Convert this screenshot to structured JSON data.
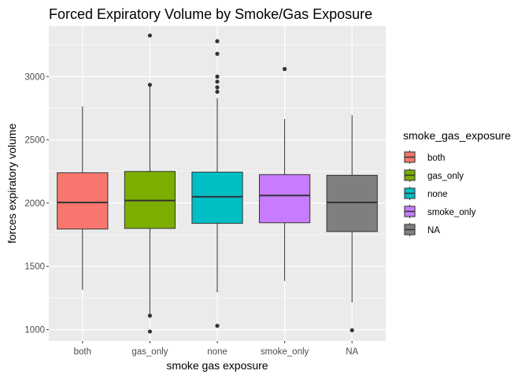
{
  "chart_data": {
    "type": "boxplot",
    "title": "Forced Expiratory Volume by Smoke/Gas Exposure",
    "xlabel": "smoke gas exposure",
    "ylabel": "forces expiratory volume",
    "categories": [
      "both",
      "gas_only",
      "none",
      "smoke_only",
      "NA"
    ],
    "ylim": [
      910,
      3400
    ],
    "yticks": [
      1000,
      1500,
      2000,
      2500,
      3000
    ],
    "grid": true,
    "legend": {
      "title": "smoke_gas_exposure",
      "position": "right"
    },
    "boxes": [
      {
        "category": "both",
        "whisker_low": 1315,
        "q1": 1795,
        "median": 2005,
        "q3": 2240,
        "whisker_high": 2765,
        "outliers": [],
        "color": "#F8766D"
      },
      {
        "category": "gas_only",
        "whisker_low": 1120,
        "q1": 1800,
        "median": 2020,
        "q3": 2250,
        "whisker_high": 2930,
        "outliers": [
          3325,
          2935,
          1110,
          985
        ],
        "color": "#7CAE00"
      },
      {
        "category": "none",
        "whisker_low": 1295,
        "q1": 1840,
        "median": 2050,
        "q3": 2245,
        "whisker_high": 2830,
        "outliers": [
          3280,
          3180,
          3000,
          2960,
          2915,
          2880,
          1030
        ],
        "color": "#00BFC4"
      },
      {
        "category": "smoke_only",
        "whisker_low": 1385,
        "q1": 1845,
        "median": 2060,
        "q3": 2225,
        "whisker_high": 2665,
        "outliers": [
          3060
        ],
        "color": "#C77CFF"
      },
      {
        "category": "NA",
        "whisker_low": 1215,
        "q1": 1775,
        "median": 2005,
        "q3": 2220,
        "whisker_high": 2695,
        "outliers": [
          995
        ],
        "color": "#7F7F7F"
      }
    ]
  }
}
